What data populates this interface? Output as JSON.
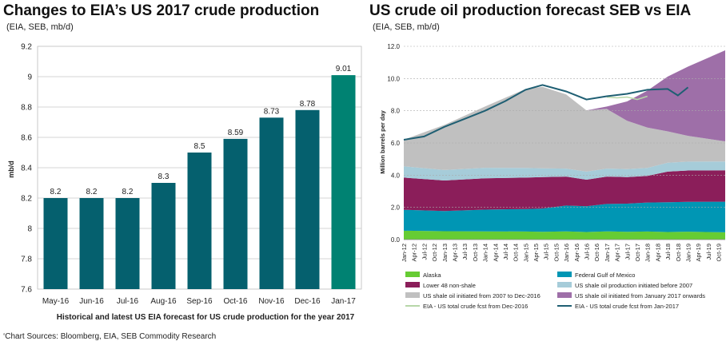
{
  "footer": "​‘Chart Sources: Bloomberg, EIA, SEB Commodity Research",
  "chart_data": [
    {
      "type": "bar",
      "title": "Changes to EIA’s US 2017 crude production",
      "subtitle": "(EIA, SEB, mb/d)",
      "xlabel": "Historical and latest US EIA forecast for US crude production for the year 2017",
      "ylabel": "mb/d",
      "ylim": [
        7.6,
        9.2
      ],
      "yticks": [
        "7.6",
        "7.8",
        "8",
        "8.2",
        "8.4",
        "8.6",
        "8.8",
        "9",
        "9.2"
      ],
      "categories": [
        "May-16",
        "Jun-16",
        "Jul-16",
        "Aug-16",
        "Sep-16",
        "Oct-16",
        "Nov-16",
        "Dec-16",
        "Jan-17"
      ],
      "values": [
        8.2,
        8.2,
        8.2,
        8.3,
        8.5,
        8.59,
        8.73,
        8.78,
        9.01
      ],
      "value_labels": [
        "8.2",
        "8.2",
        "8.2",
        "8.3",
        "8.5",
        "8.59",
        "8.73",
        "8.78",
        "9.01"
      ],
      "bar_color": "#05606e",
      "highlight_color": "#008272",
      "grid": true
    },
    {
      "type": "area",
      "title": "US crude oil production forecast SEB vs EIA",
      "subtitle": "(EIA, SEB, mb/d)",
      "ylabel": "Million barrels per day",
      "ylim": [
        0,
        12
      ],
      "yticks": [
        "0.0",
        "2.0",
        "4.0",
        "6.0",
        "8.0",
        "10.0",
        "12.0"
      ],
      "x_start": "Jan-12",
      "x_end": "Dec-19",
      "xticks": [
        "Jan-12",
        "Apr-12",
        "Jul-12",
        "Oct-12",
        "Jan-13",
        "Apr-13",
        "Jul-13",
        "Oct-13",
        "Jan-14",
        "Apr-14",
        "Jul-14",
        "Oct-14",
        "Jan-15",
        "Apr-15",
        "Jul-15",
        "Oct-15",
        "Jan-16",
        "Apr-16",
        "Jul-16",
        "Oct-16",
        "Jan-17",
        "Apr-17",
        "Jul-17",
        "Oct-17",
        "Jan-18",
        "Apr-18",
        "Jul-18",
        "Oct-18",
        "Jan-19",
        "Apr-19",
        "Jul-19",
        "Oct-19"
      ],
      "series_x": [
        "Jan-12",
        "Jan-13",
        "Jan-14",
        "Jan-15",
        "Jun-15",
        "Jan-16",
        "Jul-16",
        "Jan-17",
        "Jul-17",
        "Jan-18",
        "Jul-18",
        "Jan-19",
        "Dec-19"
      ],
      "series": [
        {
          "name": "Alaska",
          "color": "#66cc33",
          "values": [
            0.55,
            0.52,
            0.51,
            0.5,
            0.48,
            0.51,
            0.47,
            0.51,
            0.48,
            0.5,
            0.47,
            0.49,
            0.45
          ]
        },
        {
          "name": "Federal Gulf of Mexico",
          "color": "#0096b4",
          "values": [
            1.3,
            1.25,
            1.35,
            1.4,
            1.45,
            1.6,
            1.6,
            1.7,
            1.75,
            1.8,
            1.85,
            1.85,
            1.9
          ]
        },
        {
          "name": "Lower 48 non-shale",
          "color": "#8b1e5a",
          "values": [
            2.0,
            1.9,
            1.95,
            1.95,
            1.95,
            1.8,
            1.65,
            1.7,
            1.65,
            1.65,
            1.9,
            1.95,
            1.95
          ]
        },
        {
          "name": "US shale oil production initiated before 2007",
          "color": "#a6ccd9",
          "values": [
            0.7,
            0.65,
            0.65,
            0.6,
            0.55,
            0.5,
            0.5,
            0.5,
            0.5,
            0.5,
            0.55,
            0.55,
            0.55
          ]
        },
        {
          "name": "US shale oil initiated from 2007 to Dec-2016",
          "color": "#c0c0c0",
          "values": [
            1.65,
            2.8,
            3.8,
            4.9,
            5.05,
            4.6,
            3.8,
            3.7,
            3.0,
            2.5,
            1.95,
            1.6,
            1.25
          ]
        },
        {
          "name": "US shale oil initiated from January 2017 onwards",
          "color": "#9e6fa8",
          "values": [
            0,
            0,
            0,
            0,
            0,
            0,
            0,
            0.15,
            1.2,
            2.3,
            3.4,
            4.3,
            5.65
          ]
        }
      ],
      "lines": [
        {
          "name": "EIA - US total crude fcst from Dec-2016",
          "color": "#b7d7a8",
          "x": [
            "Jan-17",
            "Apr-17",
            "Jul-17",
            "Oct-17",
            "Jan-18"
          ],
          "values": [
            8.85,
            8.8,
            8.85,
            8.7,
            8.9
          ]
        },
        {
          "name": "EIA - US total crude fcst from Jan-2017",
          "color": "#1f5f73",
          "x": [
            "Jan-12",
            "Jul-12",
            "Jan-13",
            "Jul-13",
            "Jan-14",
            "Jul-14",
            "Jan-15",
            "Jun-15",
            "Jan-16",
            "Jul-16",
            "Jan-17",
            "Jul-17",
            "Jan-18",
            "Jul-18",
            "Oct-18",
            "Jan-19"
          ],
          "values": [
            6.2,
            6.4,
            7.0,
            7.5,
            8.0,
            8.6,
            9.3,
            9.6,
            9.2,
            8.7,
            8.9,
            9.05,
            9.3,
            9.35,
            8.95,
            9.45
          ]
        }
      ]
    }
  ]
}
